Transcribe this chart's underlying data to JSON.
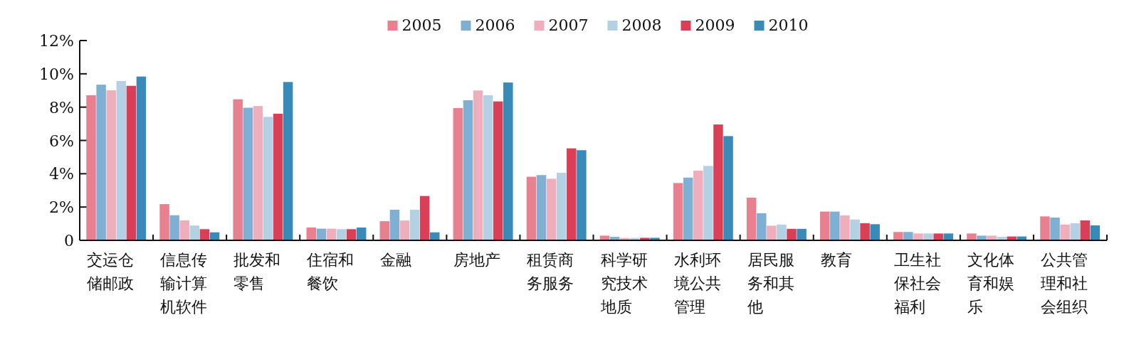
{
  "chart_data": {
    "type": "bar",
    "categories": [
      "交运仓储邮政",
      "信息传输计算机软件",
      "批发和零售",
      "住宿和餐饮",
      "金融",
      "房地产",
      "租赁商务服务",
      "科学研究技术地质",
      "水利环境公共管理",
      "居民服务和其他",
      "教育",
      "卫生社保社会福利",
      "文化体育和娱乐",
      "公共管理和社会组织"
    ],
    "series": [
      {
        "name": "2005",
        "color": "#e8808f",
        "values": [
          8.7,
          2.14,
          8.46,
          0.73,
          1.11,
          7.93,
          3.79,
          0.24,
          3.41,
          2.53,
          1.69,
          0.46,
          0.37,
          1.4
        ]
      },
      {
        "name": "2006",
        "color": "#7fb0d4",
        "values": [
          9.34,
          1.47,
          7.95,
          0.66,
          1.8,
          8.4,
          3.89,
          0.17,
          3.74,
          1.59,
          1.69,
          0.46,
          0.24,
          1.33
        ]
      },
      {
        "name": "2007",
        "color": "#efaebb",
        "values": [
          9.0,
          1.16,
          8.05,
          0.66,
          1.15,
          8.99,
          3.67,
          0.1,
          4.16,
          0.84,
          1.46,
          0.37,
          0.24,
          0.91
        ]
      },
      {
        "name": "2008",
        "color": "#b4d0e3",
        "values": [
          9.56,
          0.85,
          7.4,
          0.63,
          1.8,
          8.7,
          4.03,
          0.1,
          4.44,
          0.91,
          1.21,
          0.37,
          0.17,
          0.99
        ]
      },
      {
        "name": "2009",
        "color": "#d93f57",
        "values": [
          9.27,
          0.63,
          7.59,
          0.63,
          2.63,
          8.33,
          5.5,
          0.11,
          6.94,
          0.65,
          0.99,
          0.37,
          0.19,
          1.16
        ]
      },
      {
        "name": "2010",
        "color": "#3a8ab8",
        "values": [
          9.83,
          0.44,
          9.5,
          0.73,
          0.44,
          9.47,
          5.39,
          0.11,
          6.24,
          0.65,
          0.93,
          0.37,
          0.19,
          0.86
        ]
      }
    ],
    "ylim": [
      0,
      12
    ],
    "yticks": [
      0,
      {
        "value": 2,
        "label": "2%"
      },
      {
        "value": 4,
        "label": "4%"
      },
      {
        "value": 6,
        "label": "6%"
      },
      {
        "value": 8,
        "label": "8%"
      },
      {
        "value": 10,
        "label": "10%"
      },
      {
        "value": 12,
        "label": "12%"
      }
    ],
    "legend": "top",
    "grid": false
  }
}
